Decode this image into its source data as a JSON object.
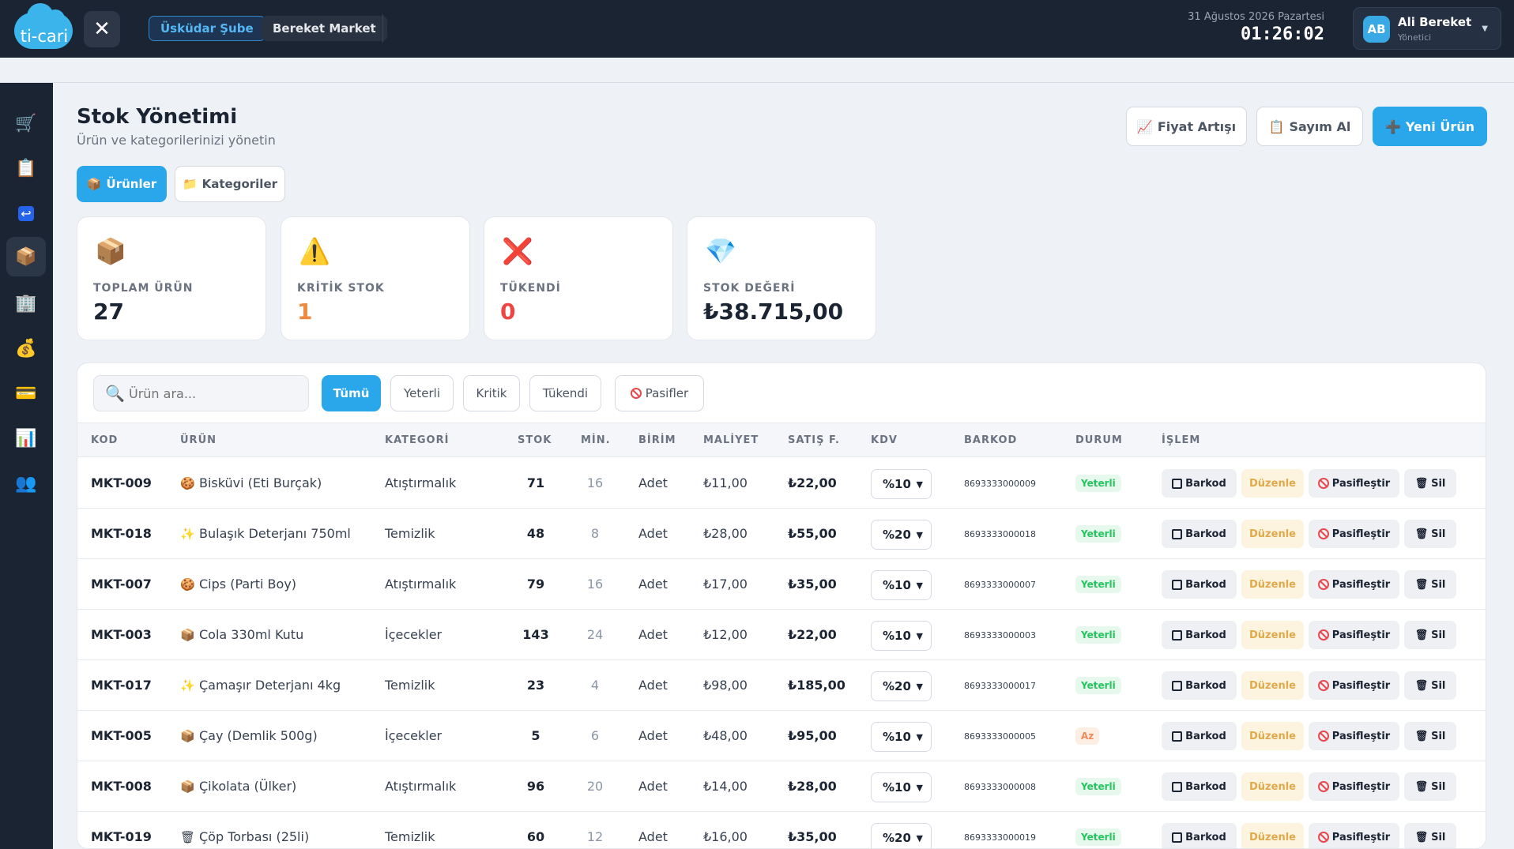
{
  "topbar": {
    "logo_text": "ti-cari",
    "branch": "Üsküdar Şube",
    "store": "Bereket Market",
    "date": "31 Ağustos 2026 Pazartesi",
    "time": "01:26:02",
    "user": {
      "initials": "AB",
      "name": "Ali Bereket",
      "role": "Yönetici"
    }
  },
  "sidebar": {
    "items": [
      {
        "icon": "cart-icon",
        "glyph": "🛒"
      },
      {
        "icon": "clipboard-icon",
        "glyph": "📋"
      },
      {
        "icon": "return-icon",
        "glyph": "↩"
      },
      {
        "icon": "box-icon",
        "glyph": "📦",
        "active": true
      },
      {
        "icon": "building-icon",
        "glyph": "🏢"
      },
      {
        "icon": "money-bag-icon",
        "glyph": "💰"
      },
      {
        "icon": "card-icon",
        "glyph": "💳"
      },
      {
        "icon": "chart-icon",
        "glyph": "📊"
      },
      {
        "icon": "users-icon",
        "glyph": "👥"
      }
    ]
  },
  "page": {
    "title": "Stok Yönetimi",
    "subtitle": "Ürün ve kategorilerinizi yönetin",
    "buttons": {
      "price_increase": "Fiyat Artışı",
      "count": "Sayım Al",
      "new_product": "Yeni Ürün"
    },
    "tabs": {
      "products": "Ürünler",
      "categories": "Kategoriler"
    }
  },
  "stats": [
    {
      "label": "TOPLAM ÜRÜN",
      "value": "27",
      "color": "#1b2433",
      "icon": "📦"
    },
    {
      "label": "KRİTİK STOK",
      "value": "1",
      "color": "#f0883e",
      "icon": "⚠️"
    },
    {
      "label": "TÜKENDİ",
      "value": "0",
      "color": "#ef4444",
      "icon": "❌"
    },
    {
      "label": "STOK DEĞERİ",
      "value": "₺38.715,00",
      "color": "#1b2433",
      "icon": "💎"
    }
  ],
  "search": {
    "placeholder": "Ürün ara..."
  },
  "filters": {
    "all": "Tümü",
    "sufficient": "Yeterli",
    "critical": "Kritik",
    "out": "Tükendi",
    "passive": "Pasifler"
  },
  "table": {
    "headers": {
      "code": "KOD",
      "product": "ÜRÜN",
      "category": "KATEGORİ",
      "stock": "STOK",
      "min": "MİN.",
      "unit": "BİRİM",
      "cost": "MALİYET",
      "sale": "SATIŞ F.",
      "vat": "KDV",
      "barcode": "BARKOD",
      "status": "DURUM",
      "action": "İŞLEM"
    },
    "actions": {
      "barcode": "Barkod",
      "edit": "Düzenle",
      "deactivate": "Pasifleştir",
      "delete": "Sil"
    },
    "rows": [
      {
        "code": "MKT-009",
        "icon": "🍪",
        "name": "Bisküvi (Eti Burçak)",
        "category": "Atıştırmalık",
        "stock": "71",
        "min": "16",
        "unit": "Adet",
        "cost": "₺11,00",
        "sale": "₺22,00",
        "vat": "%10",
        "barcode": "8693333000009",
        "status": "Yeterli"
      },
      {
        "code": "MKT-018",
        "icon": "✨",
        "name": "Bulaşık Deterjanı 750ml",
        "category": "Temizlik",
        "stock": "48",
        "min": "8",
        "unit": "Adet",
        "cost": "₺28,00",
        "sale": "₺55,00",
        "vat": "%20",
        "barcode": "8693333000018",
        "status": "Yeterli"
      },
      {
        "code": "MKT-007",
        "icon": "🍪",
        "name": "Cips (Parti Boy)",
        "category": "Atıştırmalık",
        "stock": "79",
        "min": "16",
        "unit": "Adet",
        "cost": "₺17,00",
        "sale": "₺35,00",
        "vat": "%10",
        "barcode": "8693333000007",
        "status": "Yeterli"
      },
      {
        "code": "MKT-003",
        "icon": "📦",
        "name": "Cola 330ml Kutu",
        "category": "İçecekler",
        "stock": "143",
        "min": "24",
        "unit": "Adet",
        "cost": "₺12,00",
        "sale": "₺22,00",
        "vat": "%10",
        "barcode": "8693333000003",
        "status": "Yeterli"
      },
      {
        "code": "MKT-017",
        "icon": "✨",
        "name": "Çamaşır Deterjanı 4kg",
        "category": "Temizlik",
        "stock": "23",
        "min": "4",
        "unit": "Adet",
        "cost": "₺98,00",
        "sale": "₺185,00",
        "vat": "%20",
        "barcode": "8693333000017",
        "status": "Yeterli"
      },
      {
        "code": "MKT-005",
        "icon": "📦",
        "name": "Çay (Demlik 500g)",
        "category": "İçecekler",
        "stock": "5",
        "min": "6",
        "unit": "Adet",
        "cost": "₺48,00",
        "sale": "₺95,00",
        "vat": "%10",
        "barcode": "8693333000005",
        "status": "Az"
      },
      {
        "code": "MKT-008",
        "icon": "📦",
        "name": "Çikolata (Ülker)",
        "category": "Atıştırmalık",
        "stock": "96",
        "min": "20",
        "unit": "Adet",
        "cost": "₺14,00",
        "sale": "₺28,00",
        "vat": "%10",
        "barcode": "8693333000008",
        "status": "Yeterli"
      },
      {
        "code": "MKT-019",
        "icon": "🗑",
        "name": "Çöp Torbası (25li)",
        "category": "Temizlik",
        "stock": "60",
        "min": "12",
        "unit": "Adet",
        "cost": "₺16,00",
        "sale": "₺35,00",
        "vat": "%20",
        "barcode": "8693333000019",
        "status": "Yeterli"
      }
    ]
  }
}
